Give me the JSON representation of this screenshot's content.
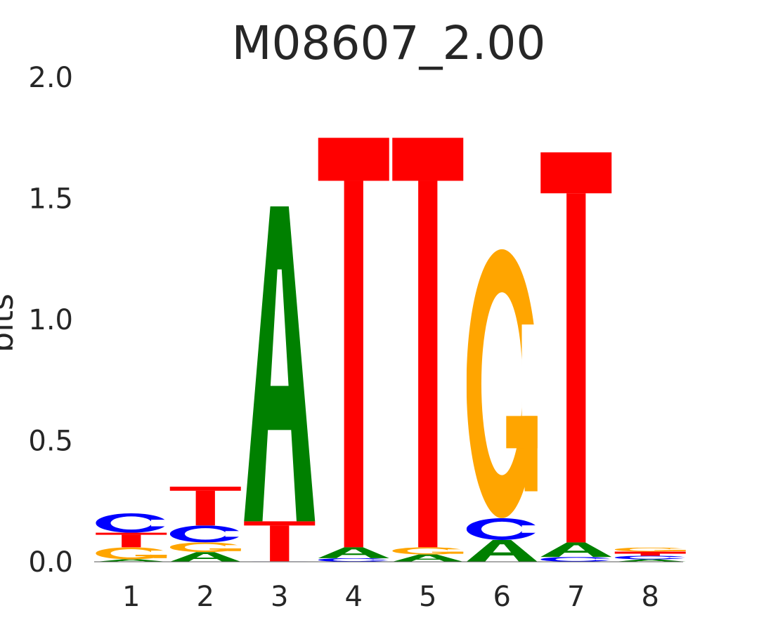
{
  "chart_data": {
    "type": "sequence-logo",
    "title": "M08607_2.00",
    "ylabel": "bits",
    "ylim": [
      0,
      2.0
    ],
    "yticks": [
      "0.0",
      "0.5",
      "1.0",
      "1.5",
      "2.0"
    ],
    "positions": [
      "1",
      "2",
      "3",
      "4",
      "5",
      "6",
      "7",
      "8"
    ],
    "letter_colors": {
      "A": "#008000",
      "C": "#0000ff",
      "G": "#ffa500",
      "T": "#ff0000"
    },
    "stacks": [
      [
        {
          "letter": "A",
          "bits": 0.01
        },
        {
          "letter": "G",
          "bits": 0.05
        },
        {
          "letter": "T",
          "bits": 0.06
        },
        {
          "letter": "C",
          "bits": 0.08
        }
      ],
      [
        {
          "letter": "A",
          "bits": 0.04
        },
        {
          "letter": "G",
          "bits": 0.04
        },
        {
          "letter": "C",
          "bits": 0.07
        },
        {
          "letter": "T",
          "bits": 0.16
        }
      ],
      [
        {
          "letter": "C",
          "bits": 0.002
        },
        {
          "letter": "T",
          "bits": 0.165
        },
        {
          "letter": "A",
          "bits": 1.3
        }
      ],
      [
        {
          "letter": "C",
          "bits": 0.015
        },
        {
          "letter": "A",
          "bits": 0.045
        },
        {
          "letter": "T",
          "bits": 1.69
        }
      ],
      [
        {
          "letter": "A",
          "bits": 0.03
        },
        {
          "letter": "G",
          "bits": 0.03
        },
        {
          "letter": "T",
          "bits": 1.69
        }
      ],
      [
        {
          "letter": "A",
          "bits": 0.09
        },
        {
          "letter": "C",
          "bits": 0.09
        },
        {
          "letter": "G",
          "bits": 1.11
        }
      ],
      [
        {
          "letter": "C",
          "bits": 0.02
        },
        {
          "letter": "A",
          "bits": 0.06
        },
        {
          "letter": "T",
          "bits": 1.61
        }
      ],
      [
        {
          "letter": "A",
          "bits": 0.01
        },
        {
          "letter": "C",
          "bits": 0.015
        },
        {
          "letter": "T",
          "bits": 0.017
        },
        {
          "letter": "G",
          "bits": 0.017
        }
      ]
    ]
  }
}
